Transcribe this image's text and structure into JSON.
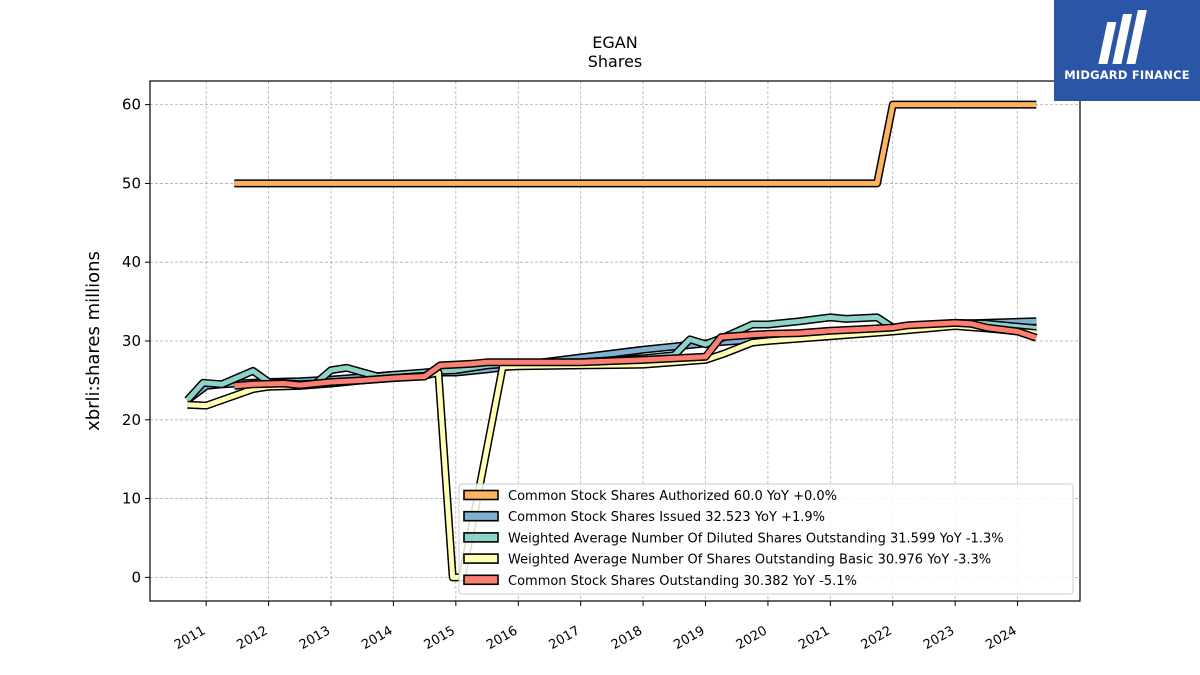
{
  "chart_data": {
    "type": "line",
    "title": "EGAN",
    "subtitle": "Shares",
    "ylabel": "xbrli:shares millions",
    "xlabel": "",
    "xlim": [
      2010.1,
      2025.0
    ],
    "ylim": [
      -3.0,
      63.0
    ],
    "x_ticks": [
      "2011",
      "2012",
      "2013",
      "2014",
      "2015",
      "2016",
      "2017",
      "2018",
      "2019",
      "2020",
      "2021",
      "2022",
      "2023",
      "2024"
    ],
    "y_ticks": [
      0,
      10,
      20,
      30,
      40,
      50,
      60
    ],
    "grid": true,
    "legend_position": "lower-right",
    "series": [
      {
        "name": "Common Stock Shares Authorized",
        "legend": "Common Stock Shares Authorized  60.0 YoY +0.0%",
        "color": "#fdb462",
        "points": [
          [
            2011.45,
            50.0
          ],
          [
            2021.75,
            50.0
          ],
          [
            2022.0,
            60.0
          ],
          [
            2024.3,
            60.0
          ]
        ]
      },
      {
        "name": "Common Stock Shares Issued",
        "legend": "Common Stock Shares Issued  32.523 YoY +1.9%",
        "color": "#80b1d3",
        "points": [
          [
            2010.7,
            22.5
          ],
          [
            2011.0,
            24.3
          ],
          [
            2011.25,
            24.5
          ],
          [
            2011.75,
            24.7
          ],
          [
            2012.0,
            24.8
          ],
          [
            2012.5,
            24.9
          ],
          [
            2013.0,
            25.1
          ],
          [
            2013.5,
            25.4
          ],
          [
            2014.0,
            25.7
          ],
          [
            2014.5,
            25.9
          ],
          [
            2014.75,
            26.0
          ],
          [
            2015.0,
            26.0
          ],
          [
            2015.5,
            26.4
          ],
          [
            2016.0,
            26.9
          ],
          [
            2017.0,
            27.9
          ],
          [
            2018.0,
            28.9
          ],
          [
            2019.0,
            29.7
          ],
          [
            2019.3,
            29.9
          ],
          [
            2020.0,
            30.3
          ],
          [
            2021.0,
            30.9
          ],
          [
            2022.0,
            31.6
          ],
          [
            2023.0,
            32.2
          ],
          [
            2024.3,
            32.5
          ]
        ]
      },
      {
        "name": "Weighted Average Number Of Diluted Shares Outstanding",
        "legend": "Weighted Average Number Of Diluted Shares Outstanding  31.599 YoY -1.3%",
        "color": "#8dd3c7",
        "points": [
          [
            2010.7,
            22.5
          ],
          [
            2010.95,
            24.7
          ],
          [
            2011.25,
            24.5
          ],
          [
            2011.75,
            26.2
          ],
          [
            2012.0,
            24.8
          ],
          [
            2012.5,
            24.5
          ],
          [
            2012.75,
            24.6
          ],
          [
            2013.0,
            26.3
          ],
          [
            2013.25,
            26.6
          ],
          [
            2013.75,
            25.5
          ],
          [
            2014.0,
            25.7
          ],
          [
            2014.5,
            26.0
          ],
          [
            2014.75,
            26.2
          ],
          [
            2015.0,
            26.3
          ],
          [
            2015.5,
            26.9
          ],
          [
            2016.0,
            27.2
          ],
          [
            2017.0,
            27.3
          ],
          [
            2018.0,
            27.8
          ],
          [
            2018.5,
            28.2
          ],
          [
            2018.75,
            30.2
          ],
          [
            2019.0,
            29.6
          ],
          [
            2019.3,
            30.5
          ],
          [
            2019.75,
            32.1
          ],
          [
            2020.0,
            32.1
          ],
          [
            2020.5,
            32.5
          ],
          [
            2021.0,
            33.0
          ],
          [
            2021.25,
            32.8
          ],
          [
            2021.75,
            33.0
          ],
          [
            2022.0,
            31.7
          ],
          [
            2022.5,
            32.0
          ],
          [
            2023.0,
            32.3
          ],
          [
            2023.5,
            32.2
          ],
          [
            2024.3,
            31.6
          ]
        ]
      },
      {
        "name": "Weighted Average Number Of Shares Outstanding Basic",
        "legend": "Weighted Average Number Of Shares Outstanding Basic  30.976 YoY -3.3%",
        "color": "#ffffb3",
        "points": [
          [
            2010.7,
            21.9
          ],
          [
            2011.0,
            21.8
          ],
          [
            2011.25,
            22.5
          ],
          [
            2011.75,
            23.9
          ],
          [
            2012.0,
            24.2
          ],
          [
            2012.5,
            24.3
          ],
          [
            2013.0,
            24.6
          ],
          [
            2013.5,
            25.0
          ],
          [
            2014.0,
            25.3
          ],
          [
            2014.5,
            25.6
          ],
          [
            2014.72,
            26.0
          ],
          [
            2014.95,
            0.0
          ],
          [
            2015.1,
            0.0
          ],
          [
            2015.75,
            26.7
          ],
          [
            2016.0,
            26.8
          ],
          [
            2017.0,
            26.9
          ],
          [
            2018.0,
            27.0
          ],
          [
            2019.0,
            27.6
          ],
          [
            2019.3,
            28.4
          ],
          [
            2019.75,
            29.8
          ],
          [
            2020.0,
            30.0
          ],
          [
            2021.0,
            30.6
          ],
          [
            2022.0,
            31.2
          ],
          [
            2023.0,
            31.9
          ],
          [
            2023.5,
            31.6
          ],
          [
            2024.3,
            31.0
          ]
        ]
      },
      {
        "name": "Common Stock Shares Outstanding",
        "legend": "Common Stock Shares Outstanding  30.382 YoY -5.1%",
        "color": "#fb8072",
        "points": [
          [
            2011.45,
            24.3
          ],
          [
            2011.75,
            24.5
          ],
          [
            2012.25,
            24.6
          ],
          [
            2012.5,
            24.4
          ],
          [
            2013.0,
            24.8
          ],
          [
            2013.5,
            25.0
          ],
          [
            2014.0,
            25.3
          ],
          [
            2014.5,
            25.5
          ],
          [
            2014.75,
            26.9
          ],
          [
            2015.0,
            27.0
          ],
          [
            2015.25,
            27.1
          ],
          [
            2015.5,
            27.3
          ],
          [
            2016.0,
            27.3
          ],
          [
            2017.0,
            27.3
          ],
          [
            2018.0,
            27.6
          ],
          [
            2019.0,
            28.0
          ],
          [
            2019.25,
            30.5
          ],
          [
            2019.75,
            30.8
          ],
          [
            2020.0,
            30.9
          ],
          [
            2020.5,
            31.0
          ],
          [
            2021.0,
            31.3
          ],
          [
            2021.5,
            31.5
          ],
          [
            2022.0,
            31.7
          ],
          [
            2022.25,
            32.0
          ],
          [
            2023.0,
            32.3
          ],
          [
            2023.25,
            32.2
          ],
          [
            2023.5,
            31.7
          ],
          [
            2024.0,
            31.2
          ],
          [
            2024.3,
            30.4
          ]
        ]
      }
    ]
  },
  "logo": {
    "name": "MIDGARD FINANCE",
    "bg_color": "#2b55a6"
  }
}
